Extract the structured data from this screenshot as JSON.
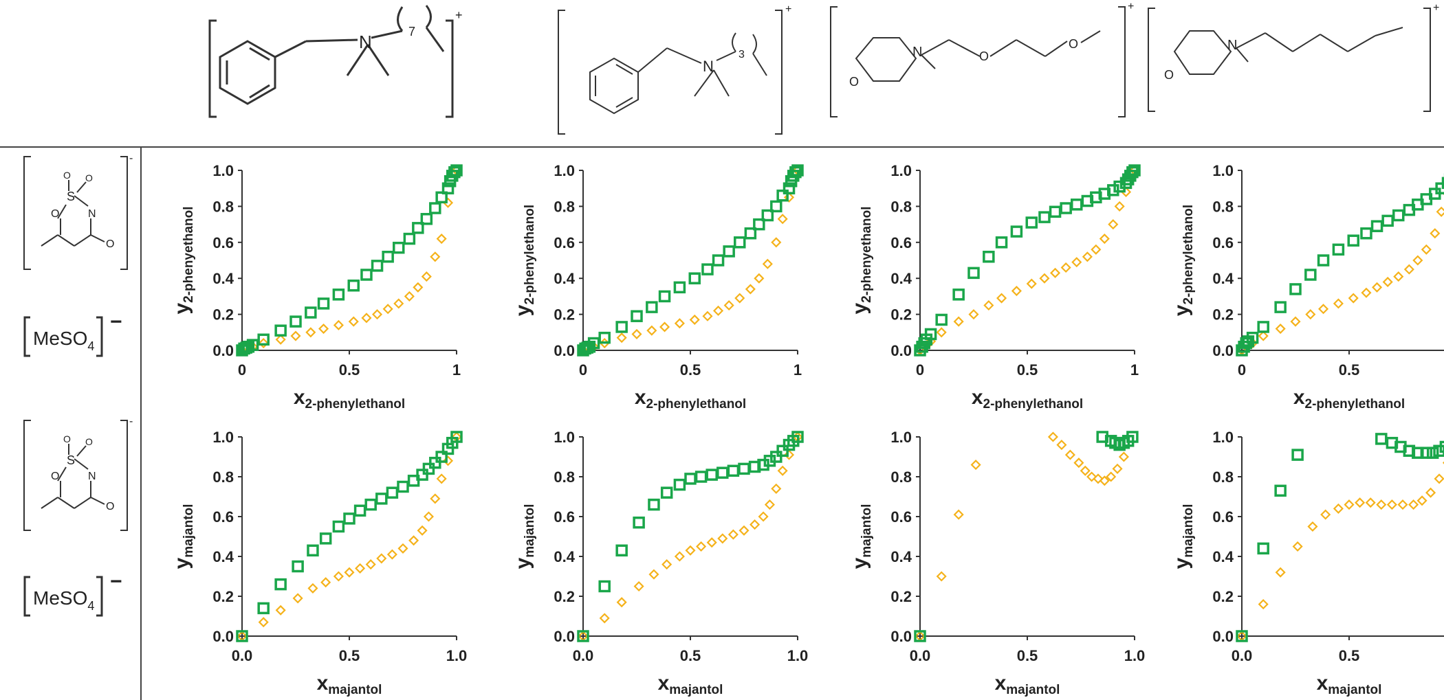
{
  "colors": {
    "series_a": "#1aa64a",
    "series_b": "#f5b21a",
    "lines": "#333333",
    "text": "#222222"
  },
  "cation_labels": [
    "+",
    "+",
    "+",
    "+"
  ],
  "anion_labels": [
    {
      "formula_main": "MeSO",
      "formula_sub": "4",
      "charge": "−",
      "acesulfame_charge": "-"
    },
    {
      "formula_main": "MeSO",
      "formula_sub": "4",
      "charge": "−",
      "acesulfame_charge": "-"
    }
  ],
  "cation_chain_labels": [
    "7",
    "3"
  ],
  "chart_data": [
    {
      "type": "scatter",
      "row": 0,
      "col": 0,
      "xlabel_main": "x",
      "xlabel_sub": "2-phenylethanol",
      "ylabel_main": "y",
      "ylabel_sub": "2-phenyethanol",
      "xlim": [
        0,
        1
      ],
      "ylim": [
        0,
        1
      ],
      "xticks": [
        "0",
        "0.5",
        "1"
      ],
      "yticks": [
        "0.0",
        "0.2",
        "0.4",
        "0.6",
        "0.8",
        "1.0"
      ],
      "series": [
        {
          "marker": "square",
          "x": [
            0,
            0.01,
            0.02,
            0.03,
            0.05,
            0.1,
            0.18,
            0.25,
            0.32,
            0.38,
            0.45,
            0.52,
            0.58,
            0.63,
            0.68,
            0.73,
            0.78,
            0.82,
            0.86,
            0.9,
            0.93,
            0.96,
            0.97,
            0.98,
            0.99,
            1.0
          ],
          "y": [
            0,
            0.01,
            0.015,
            0.02,
            0.03,
            0.06,
            0.11,
            0.16,
            0.21,
            0.26,
            0.31,
            0.36,
            0.42,
            0.47,
            0.52,
            0.57,
            0.62,
            0.68,
            0.73,
            0.79,
            0.85,
            0.9,
            0.94,
            0.97,
            0.99,
            1.0
          ]
        },
        {
          "marker": "diamond",
          "x": [
            0,
            0.05,
            0.1,
            0.18,
            0.25,
            0.32,
            0.38,
            0.45,
            0.52,
            0.58,
            0.63,
            0.68,
            0.73,
            0.78,
            0.82,
            0.86,
            0.9,
            0.93,
            0.96,
            1.0
          ],
          "y": [
            0,
            0.02,
            0.04,
            0.06,
            0.08,
            0.1,
            0.12,
            0.14,
            0.16,
            0.18,
            0.2,
            0.23,
            0.26,
            0.3,
            0.35,
            0.41,
            0.52,
            0.62,
            0.82,
            1.0
          ]
        }
      ]
    },
    {
      "type": "scatter",
      "row": 0,
      "col": 1,
      "xlabel_main": "x",
      "xlabel_sub": "2-phenylethanol",
      "ylabel_main": "y",
      "ylabel_sub": "2-phenylethanol",
      "xlim": [
        0,
        1
      ],
      "ylim": [
        0,
        1
      ],
      "xticks": [
        "0",
        "0.5",
        "1"
      ],
      "yticks": [
        "0.0",
        "0.2",
        "0.4",
        "0.6",
        "0.8",
        "1.0"
      ],
      "series": [
        {
          "marker": "square",
          "x": [
            0,
            0.01,
            0.02,
            0.03,
            0.05,
            0.1,
            0.18,
            0.25,
            0.32,
            0.38,
            0.45,
            0.52,
            0.58,
            0.63,
            0.68,
            0.73,
            0.78,
            0.82,
            0.86,
            0.9,
            0.93,
            0.96,
            0.97,
            0.98,
            0.99,
            1.0
          ],
          "y": [
            0,
            0.01,
            0.015,
            0.02,
            0.04,
            0.07,
            0.13,
            0.19,
            0.24,
            0.3,
            0.35,
            0.4,
            0.45,
            0.5,
            0.55,
            0.6,
            0.65,
            0.7,
            0.75,
            0.8,
            0.86,
            0.9,
            0.94,
            0.97,
            0.99,
            1.0
          ]
        },
        {
          "marker": "diamond",
          "x": [
            0,
            0.05,
            0.1,
            0.18,
            0.25,
            0.32,
            0.38,
            0.45,
            0.52,
            0.58,
            0.63,
            0.68,
            0.73,
            0.78,
            0.82,
            0.86,
            0.9,
            0.93,
            0.96,
            1.0
          ],
          "y": [
            0,
            0.02,
            0.04,
            0.07,
            0.09,
            0.11,
            0.13,
            0.15,
            0.17,
            0.19,
            0.22,
            0.25,
            0.29,
            0.34,
            0.4,
            0.48,
            0.6,
            0.73,
            0.85,
            1.0
          ]
        }
      ]
    },
    {
      "type": "scatter",
      "row": 0,
      "col": 2,
      "xlabel_main": "x",
      "xlabel_sub": "2-phenylethanol",
      "ylabel_main": "y",
      "ylabel_sub": "2-phenyethanol",
      "xlim": [
        0,
        1
      ],
      "ylim": [
        0,
        1
      ],
      "xticks": [
        "0",
        "0.5",
        "1"
      ],
      "yticks": [
        "0.0",
        "0.2",
        "0.4",
        "0.6",
        "0.8",
        "1.0"
      ],
      "series": [
        {
          "marker": "square",
          "x": [
            0,
            0.01,
            0.02,
            0.03,
            0.05,
            0.1,
            0.18,
            0.25,
            0.32,
            0.38,
            0.45,
            0.52,
            0.58,
            0.63,
            0.68,
            0.73,
            0.78,
            0.82,
            0.86,
            0.9,
            0.93,
            0.96,
            0.97,
            0.98,
            0.99,
            1.0
          ],
          "y": [
            0,
            0.02,
            0.04,
            0.06,
            0.09,
            0.17,
            0.31,
            0.43,
            0.52,
            0.6,
            0.66,
            0.71,
            0.74,
            0.77,
            0.79,
            0.81,
            0.83,
            0.85,
            0.87,
            0.89,
            0.91,
            0.93,
            0.95,
            0.97,
            0.99,
            1.0
          ]
        },
        {
          "marker": "diamond",
          "x": [
            0,
            0.05,
            0.1,
            0.18,
            0.25,
            0.32,
            0.38,
            0.45,
            0.52,
            0.58,
            0.63,
            0.68,
            0.73,
            0.78,
            0.82,
            0.86,
            0.9,
            0.93,
            0.96,
            1.0
          ],
          "y": [
            0,
            0.05,
            0.1,
            0.16,
            0.2,
            0.25,
            0.29,
            0.33,
            0.37,
            0.4,
            0.43,
            0.46,
            0.49,
            0.52,
            0.56,
            0.62,
            0.7,
            0.8,
            0.88,
            1.0
          ]
        }
      ]
    },
    {
      "type": "scatter",
      "row": 0,
      "col": 3,
      "xlabel_main": "x",
      "xlabel_sub": "2-phenylethanol",
      "ylabel_main": "y",
      "ylabel_sub": "2-phenylethanol",
      "xlim": [
        0,
        1
      ],
      "ylim": [
        0,
        1
      ],
      "xticks": [
        "0",
        "0.5",
        "1"
      ],
      "yticks": [
        "0.0",
        "0.2",
        "0.4",
        "0.6",
        "0.8",
        "1.0"
      ],
      "series": [
        {
          "marker": "square",
          "x": [
            0,
            0.01,
            0.02,
            0.03,
            0.05,
            0.1,
            0.18,
            0.25,
            0.32,
            0.38,
            0.45,
            0.52,
            0.58,
            0.63,
            0.68,
            0.73,
            0.78,
            0.82,
            0.86,
            0.9,
            0.93,
            0.96,
            0.97,
            0.98,
            0.99,
            1.0
          ],
          "y": [
            0,
            0.02,
            0.04,
            0.05,
            0.07,
            0.13,
            0.24,
            0.34,
            0.42,
            0.5,
            0.56,
            0.61,
            0.65,
            0.69,
            0.72,
            0.75,
            0.78,
            0.81,
            0.84,
            0.87,
            0.9,
            0.93,
            0.95,
            0.97,
            0.99,
            1.0
          ]
        },
        {
          "marker": "diamond",
          "x": [
            0,
            0.05,
            0.1,
            0.18,
            0.25,
            0.32,
            0.38,
            0.45,
            0.52,
            0.58,
            0.63,
            0.68,
            0.73,
            0.78,
            0.82,
            0.86,
            0.9,
            0.93,
            0.96,
            1.0
          ],
          "y": [
            0,
            0.04,
            0.08,
            0.12,
            0.16,
            0.2,
            0.23,
            0.26,
            0.29,
            0.32,
            0.35,
            0.38,
            0.41,
            0.45,
            0.5,
            0.56,
            0.65,
            0.77,
            0.87,
            1.0
          ]
        }
      ]
    },
    {
      "type": "scatter",
      "row": 1,
      "col": 0,
      "xlabel_main": "x",
      "xlabel_sub": "majantol",
      "ylabel_main": "y",
      "ylabel_sub": "majantol",
      "xlim": [
        0,
        1
      ],
      "ylim": [
        0,
        1
      ],
      "xticks": [
        "0.0",
        "0.5",
        "1.0"
      ],
      "yticks": [
        "0.0",
        "0.2",
        "0.4",
        "0.6",
        "0.8",
        "1.0"
      ],
      "series": [
        {
          "marker": "square",
          "x": [
            0,
            0.1,
            0.18,
            0.26,
            0.33,
            0.39,
            0.45,
            0.5,
            0.55,
            0.6,
            0.65,
            0.7,
            0.75,
            0.8,
            0.84,
            0.87,
            0.9,
            0.93,
            0.96,
            0.98,
            1.0
          ],
          "y": [
            0,
            0.14,
            0.26,
            0.35,
            0.43,
            0.49,
            0.55,
            0.59,
            0.63,
            0.66,
            0.69,
            0.72,
            0.75,
            0.78,
            0.81,
            0.84,
            0.87,
            0.9,
            0.94,
            0.97,
            1.0
          ]
        },
        {
          "marker": "diamond",
          "x": [
            0,
            0.1,
            0.18,
            0.26,
            0.33,
            0.39,
            0.45,
            0.5,
            0.55,
            0.6,
            0.65,
            0.7,
            0.75,
            0.8,
            0.84,
            0.87,
            0.9,
            0.93,
            0.96,
            1.0
          ],
          "y": [
            0,
            0.07,
            0.13,
            0.19,
            0.24,
            0.27,
            0.3,
            0.32,
            0.34,
            0.36,
            0.39,
            0.41,
            0.44,
            0.48,
            0.53,
            0.6,
            0.69,
            0.79,
            0.88,
            1.0
          ]
        }
      ]
    },
    {
      "type": "scatter",
      "row": 1,
      "col": 1,
      "xlabel_main": "x",
      "xlabel_sub": "majantol",
      "ylabel_main": "y",
      "ylabel_sub": "majantol",
      "xlim": [
        0,
        1
      ],
      "ylim": [
        0,
        1
      ],
      "xticks": [
        "0.0",
        "0.5",
        "1.0"
      ],
      "yticks": [
        "0.0",
        "0.2",
        "0.4",
        "0.6",
        "0.8",
        "1.0"
      ],
      "series": [
        {
          "marker": "square",
          "x": [
            0,
            0.1,
            0.18,
            0.26,
            0.33,
            0.39,
            0.45,
            0.5,
            0.55,
            0.6,
            0.65,
            0.7,
            0.75,
            0.8,
            0.84,
            0.87,
            0.9,
            0.93,
            0.96,
            0.98,
            1.0
          ],
          "y": [
            0,
            0.25,
            0.43,
            0.57,
            0.66,
            0.72,
            0.76,
            0.79,
            0.8,
            0.81,
            0.82,
            0.83,
            0.84,
            0.85,
            0.86,
            0.88,
            0.9,
            0.93,
            0.96,
            0.98,
            1.0
          ]
        },
        {
          "marker": "diamond",
          "x": [
            0,
            0.1,
            0.18,
            0.26,
            0.33,
            0.39,
            0.45,
            0.5,
            0.55,
            0.6,
            0.65,
            0.7,
            0.75,
            0.8,
            0.84,
            0.87,
            0.9,
            0.93,
            0.96,
            1.0
          ],
          "y": [
            0,
            0.09,
            0.17,
            0.25,
            0.31,
            0.36,
            0.4,
            0.43,
            0.45,
            0.47,
            0.49,
            0.51,
            0.53,
            0.56,
            0.6,
            0.66,
            0.74,
            0.83,
            0.91,
            1.0
          ]
        }
      ]
    },
    {
      "type": "scatter",
      "row": 1,
      "col": 2,
      "xlabel_main": "x",
      "xlabel_sub": "majantol",
      "ylabel_main": "y",
      "ylabel_sub": "majantol",
      "xlim": [
        0,
        1
      ],
      "ylim": [
        0,
        1
      ],
      "xticks": [
        "0.0",
        "0.5",
        "1.0"
      ],
      "yticks": [
        "0.0",
        "0.2",
        "0.4",
        "0.6",
        "0.8",
        "1.0"
      ],
      "series": [
        {
          "marker": "square",
          "x": [
            0,
            0.85,
            0.89,
            0.91,
            0.93,
            0.95,
            0.97,
            0.99
          ],
          "y": [
            0,
            1.0,
            0.98,
            0.97,
            0.96,
            0.97,
            0.98,
            1.0
          ]
        },
        {
          "marker": "diamond",
          "x": [
            0,
            0.1,
            0.18,
            0.26,
            0.62,
            0.66,
            0.7,
            0.74,
            0.77,
            0.8,
            0.83,
            0.86,
            0.89,
            0.92,
            0.95
          ],
          "y": [
            0,
            0.3,
            0.61,
            0.86,
            1.0,
            0.96,
            0.91,
            0.87,
            0.83,
            0.8,
            0.79,
            0.78,
            0.8,
            0.84,
            0.9
          ]
        }
      ]
    },
    {
      "type": "scatter",
      "row": 1,
      "col": 3,
      "xlabel_main": "x",
      "xlabel_sub": "majantol",
      "ylabel_main": "y",
      "ylabel_sub": "majantol",
      "xlim": [
        0,
        1
      ],
      "ylim": [
        0,
        1
      ],
      "xticks": [
        "0.0",
        "0.5",
        "1.0"
      ],
      "yticks": [
        "0.0",
        "0.2",
        "0.4",
        "0.6",
        "0.8",
        "1.0"
      ],
      "series": [
        {
          "marker": "square",
          "x": [
            0,
            0.1,
            0.18,
            0.26,
            0.65,
            0.7,
            0.74,
            0.78,
            0.82,
            0.86,
            0.89,
            0.92,
            0.95,
            0.98,
            1.0
          ],
          "y": [
            0,
            0.44,
            0.73,
            0.91,
            0.99,
            0.97,
            0.95,
            0.93,
            0.92,
            0.92,
            0.92,
            0.93,
            0.95,
            0.97,
            1.0
          ]
        },
        {
          "marker": "diamond",
          "x": [
            0,
            0.1,
            0.18,
            0.26,
            0.33,
            0.39,
            0.45,
            0.5,
            0.55,
            0.6,
            0.65,
            0.7,
            0.75,
            0.8,
            0.84,
            0.88,
            0.92,
            0.96,
            1.0
          ],
          "y": [
            0,
            0.16,
            0.32,
            0.45,
            0.55,
            0.61,
            0.64,
            0.66,
            0.67,
            0.67,
            0.66,
            0.66,
            0.66,
            0.66,
            0.68,
            0.72,
            0.79,
            0.87,
            1.0
          ]
        }
      ]
    }
  ]
}
